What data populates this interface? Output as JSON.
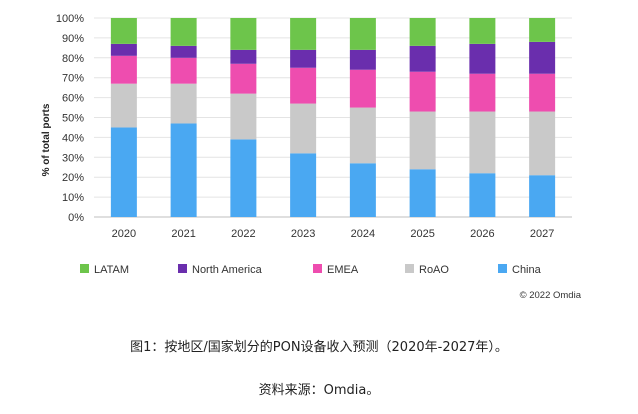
{
  "chart_data": {
    "type": "bar",
    "stacked": true,
    "categories": [
      "2020",
      "2021",
      "2022",
      "2023",
      "2024",
      "2025",
      "2026",
      "2027"
    ],
    "ylabel": "% of total ports",
    "ylim": [
      0,
      100
    ],
    "yticks": [
      "0%",
      "10%",
      "20%",
      "30%",
      "40%",
      "50%",
      "60%",
      "70%",
      "80%",
      "90%",
      "100%"
    ],
    "legend_position": "bottom",
    "series": [
      {
        "name": "China",
        "color": "#4AA8F2",
        "values": [
          45,
          47,
          39,
          32,
          27,
          24,
          22,
          21
        ]
      },
      {
        "name": "RoAO",
        "color": "#C9C9C9",
        "values": [
          22,
          20,
          23,
          25,
          28,
          29,
          31,
          32
        ]
      },
      {
        "name": "EMEA",
        "color": "#EE4DAF",
        "values": [
          14,
          13,
          15,
          18,
          19,
          20,
          19,
          19
        ]
      },
      {
        "name": "North America",
        "color": "#6A2EAD",
        "values": [
          6,
          6,
          7,
          9,
          10,
          13,
          15,
          16
        ]
      },
      {
        "name": "LATAM",
        "color": "#6DC54B",
        "values": [
          13,
          14,
          16,
          16,
          16,
          14,
          13,
          12
        ]
      }
    ],
    "legend_order": [
      "LATAM",
      "North America",
      "EMEA",
      "RoAO",
      "China"
    ],
    "copyright": "© 2022 Omdia"
  },
  "captions": {
    "figure": "图1：按地区/国家划分的PON设备收入预测（2020年-2027年）。",
    "source": "资料来源：Omdia。"
  }
}
